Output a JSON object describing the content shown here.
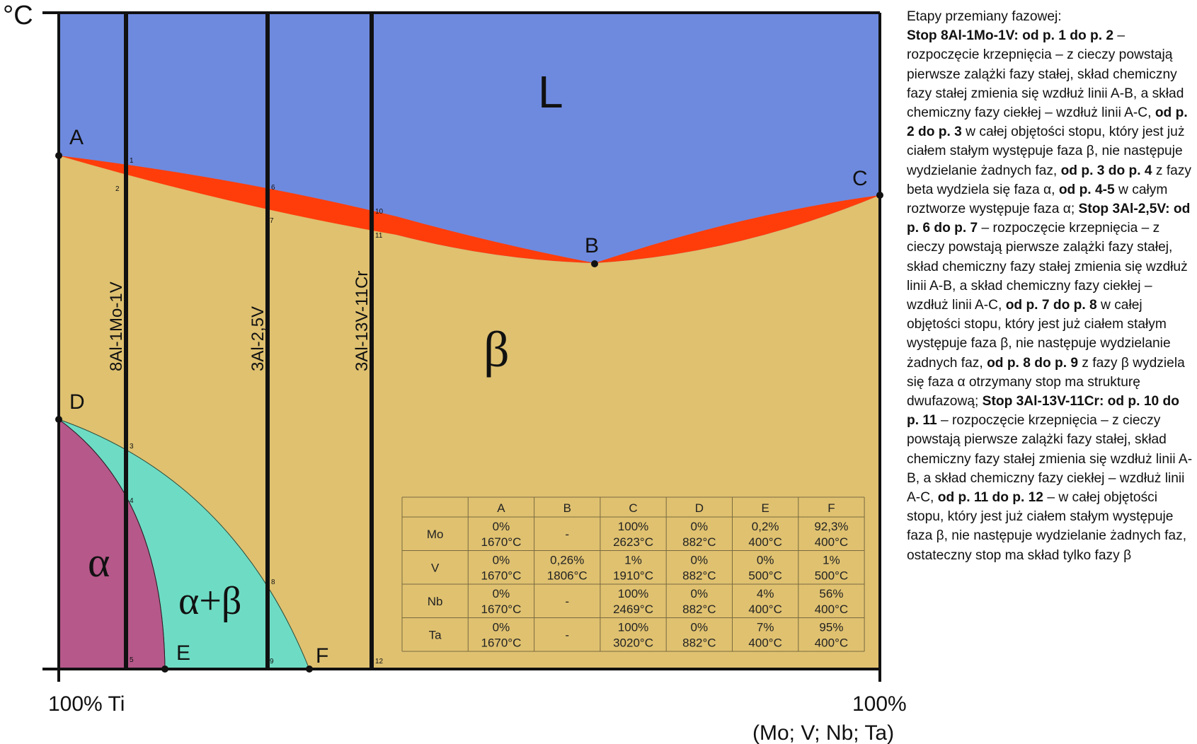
{
  "axis": {
    "y_unit": "°C",
    "x_left": "100% Ti",
    "x_right_1": "100%",
    "x_right_2": "(Mo; V; Nb; Ta)"
  },
  "points": {
    "A": "A",
    "B": "B",
    "C": "C",
    "D": "D",
    "E": "E",
    "F": "F"
  },
  "numbers": [
    "1",
    "2",
    "3",
    "4",
    "5",
    "6",
    "7",
    "8",
    "9",
    "10",
    "11",
    "12"
  ],
  "phases": {
    "L": "L",
    "beta": "β",
    "alpha": "α",
    "alpha_beta": "α+β"
  },
  "alloys": [
    "8Al-1Mo-1V",
    "3Al-2,5V",
    "3Al-13V-11Cr"
  ],
  "colors": {
    "liquid": "#6e8adf",
    "beta": "#dfc170",
    "liquidus_band": "#fe3d0b",
    "alpha": "#b6588a",
    "alpha_beta": "#6edcc4",
    "line": "#111111",
    "table_line": "#7a6a40"
  },
  "table": {
    "columns": [
      "",
      "A",
      "B",
      "C",
      "D",
      "E",
      "F"
    ],
    "rows": [
      {
        "el": "Mo",
        "cells": [
          [
            "0%",
            "1670°C"
          ],
          [
            "-",
            ""
          ],
          [
            "100%",
            "2623°C"
          ],
          [
            "0%",
            "882°C"
          ],
          [
            "0,2%",
            "400°C"
          ],
          [
            "92,3%",
            "400°C"
          ]
        ]
      },
      {
        "el": "V",
        "cells": [
          [
            "0%",
            "1670°C"
          ],
          [
            "0,26%",
            "1806°C"
          ],
          [
            "1%",
            "1910°C"
          ],
          [
            "0%",
            "882°C"
          ],
          [
            "0%",
            "500°C"
          ],
          [
            "1%",
            "500°C"
          ]
        ]
      },
      {
        "el": "Nb",
        "cells": [
          [
            "0%",
            "1670°C"
          ],
          [
            "-",
            ""
          ],
          [
            "100%",
            "2469°C"
          ],
          [
            "0%",
            "882°C"
          ],
          [
            "4%",
            "400°C"
          ],
          [
            "56%",
            "400°C"
          ]
        ]
      },
      {
        "el": "Ta",
        "cells": [
          [
            "0%",
            "1670°C"
          ],
          [
            "-",
            ""
          ],
          [
            "100%",
            "3020°C"
          ],
          [
            "0%",
            "882°C"
          ],
          [
            "7%",
            "400°C"
          ],
          [
            "95%",
            "400°C"
          ]
        ]
      }
    ]
  },
  "description": [
    {
      "t": "Etapy przemiany fazowej:",
      "b": false
    },
    {
      "t": "Stop 8Al-1Mo-1V: od p. 1 do p. 2",
      "b": true
    },
    {
      "t": " – rozpoczęcie krzepnięcia – z cieczy powstają pierwsze zalążki fazy stałej, skład chemiczny fazy stałej zmienia się wzdłuż linii A-B, a skład chemiczny fazy ciekłej – wzdłuż linii A-C, ",
      "b": false
    },
    {
      "t": "od p. 2 do p. 3",
      "b": true
    },
    {
      "t": " w całej objętości stopu, który jest już ciałem stałym występuje faza β, nie następuje wydzielanie żadnych faz, ",
      "b": false
    },
    {
      "t": "od p. 3 do p. 4",
      "b": true
    },
    {
      "t": " z fazy beta wydziela się faza α, ",
      "b": false
    },
    {
      "t": "od p. 4-5",
      "b": true
    },
    {
      "t": " w całym roztworze występuje faza α; ",
      "b": false
    },
    {
      "t": "Stop 3Al-2,5V: od p. 6 do p. 7",
      "b": true
    },
    {
      "t": " – rozpoczęcie krzepnięcia – z cieczy powstają pierwsze zalążki fazy stałej, skład chemiczny fazy stałej zmienia się wzdłuż linii A-B, a skład chemiczny fazy ciekłej – wzdłuż linii A-C, ",
      "b": false
    },
    {
      "t": "od p. 7 do p. 8",
      "b": true
    },
    {
      "t": " w całej objętości stopu, który jest już ciałem stałym występuje faza β, nie następuje wydzielanie żadnych faz, ",
      "b": false
    },
    {
      "t": "od p. 8 do p. 9",
      "b": true
    },
    {
      "t": " z fazy β wydziela się faza α otrzymany stop ma strukturę dwufazową; ",
      "b": false
    },
    {
      "t": "Stop 3Al-13V-11Cr: od p. 10 do p. 11",
      "b": true
    },
    {
      "t": " – rozpoczęcie krzepnięcia – z cieczy powstają pierwsze zalążki fazy stałej, skład chemiczny fazy stałej zmienia się wzdłuż linii A-B, a skład chemiczny fazy ciekłej – wzdłuż linii A-C, ",
      "b": false
    },
    {
      "t": "od p. 11 do p. 12",
      "b": true
    },
    {
      "t": " – w całej objętości stopu, który jest już ciałem stałym występuje faza β, nie następuje wydzielanie żadnych faz, ostateczny stop ma skład tylko fazy β",
      "b": false
    }
  ]
}
